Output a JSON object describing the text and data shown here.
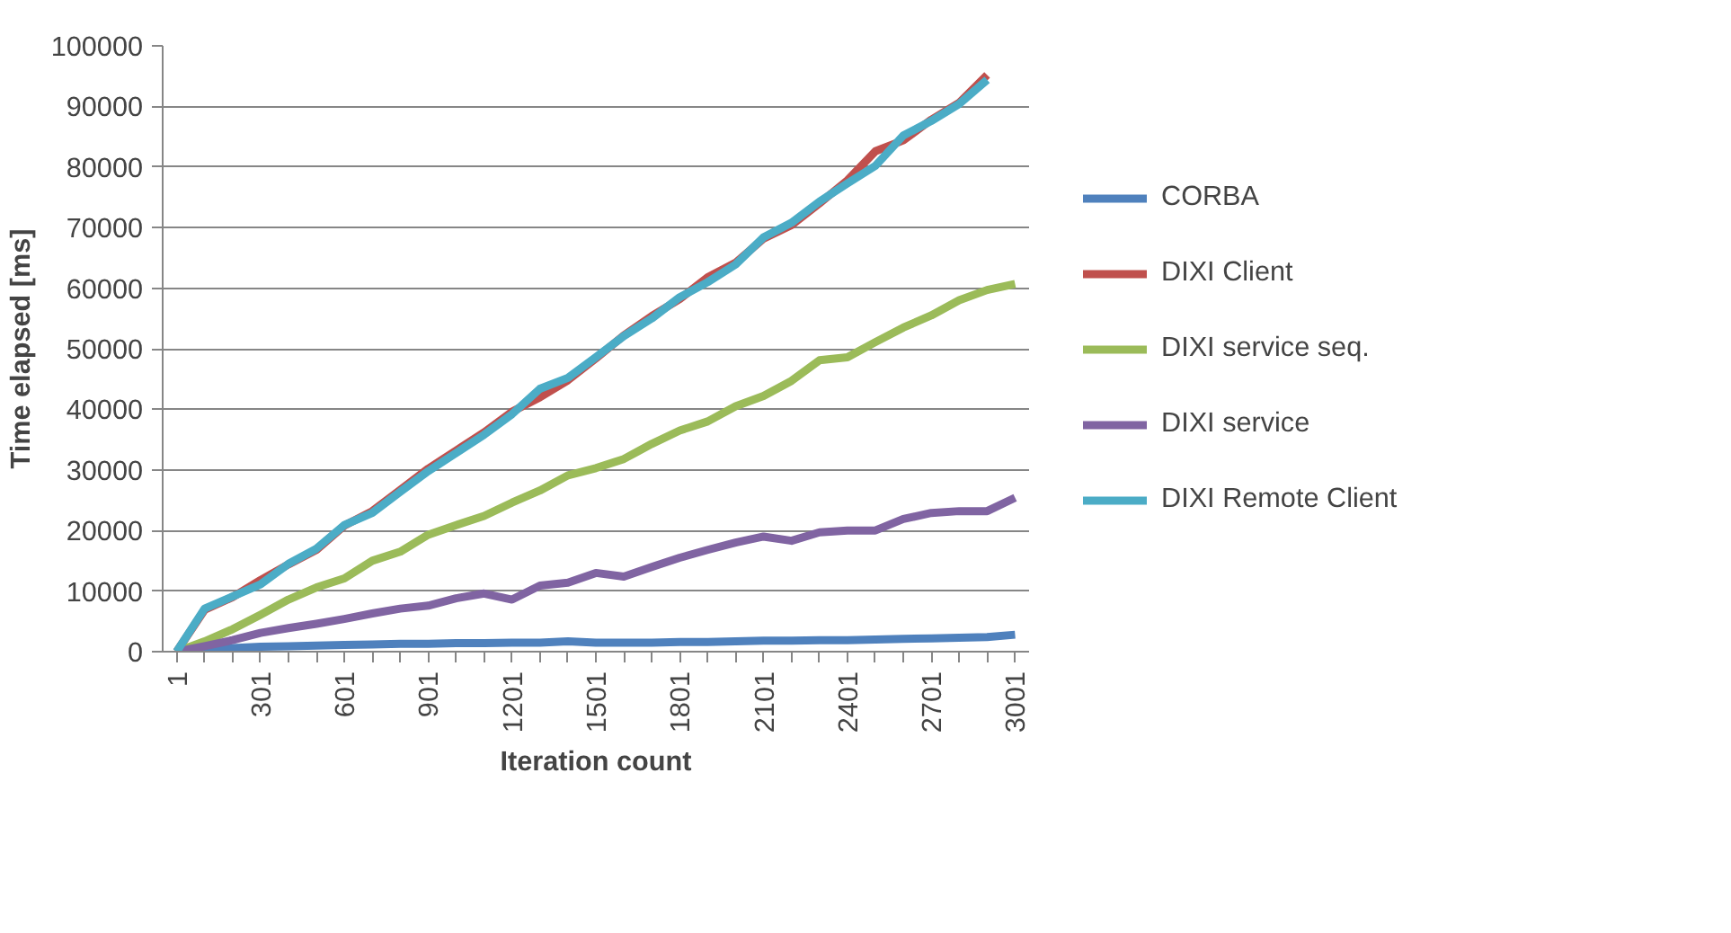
{
  "chart_data": {
    "type": "line",
    "xlabel": "Iteration count",
    "ylabel": "Time elapsed [ms]",
    "categories": [
      "1",
      null,
      null,
      "301",
      null,
      null,
      "601",
      null,
      null,
      "901",
      null,
      null,
      "1201",
      null,
      null,
      "1501",
      null,
      null,
      "1801",
      null,
      null,
      "2101",
      null,
      null,
      "2401",
      null,
      null,
      "2701",
      null,
      null,
      "3001"
    ],
    "ylim": [
      0,
      100000
    ],
    "yticks": [
      0,
      10000,
      20000,
      30000,
      40000,
      50000,
      60000,
      70000,
      80000,
      90000,
      100000
    ],
    "grid": "y",
    "legend": "right",
    "marker": "none",
    "line_style": "solid",
    "series": [
      {
        "name": "CORBA",
        "color": "#4f81bd",
        "values": [
          0,
          400,
          600,
          800,
          900,
          1000,
          1100,
          1200,
          1300,
          1300,
          1400,
          1400,
          1500,
          1500,
          1700,
          1500,
          1500,
          1500,
          1600,
          1600,
          1700,
          1800,
          1800,
          1900,
          1900,
          2000,
          2100,
          2200,
          2300,
          2400,
          2800
        ]
      },
      {
        "name": "DIXI Client",
        "color": "#c0504d",
        "values": [
          0,
          6900,
          9000,
          11800,
          14400,
          16800,
          20800,
          23200,
          26700,
          30200,
          33200,
          36200,
          39600,
          42000,
          44800,
          48400,
          52200,
          55400,
          58200,
          61800,
          64200,
          68200,
          70400,
          74000,
          77800,
          82600,
          84400,
          87800,
          90600,
          95200,
          null
        ]
      },
      {
        "name": "DIXI service seq.",
        "color": "#9bbb59",
        "values": [
          0,
          1700,
          3700,
          6100,
          8600,
          10600,
          12100,
          15000,
          16500,
          19300,
          20900,
          22400,
          24600,
          26600,
          29100,
          30300,
          31800,
          34300,
          36500,
          38000,
          40500,
          42200,
          44700,
          48100,
          48600,
          51100,
          53500,
          55500,
          58000,
          59700,
          60700
        ]
      },
      {
        "name": "DIXI service",
        "color": "#8064a2",
        "values": [
          0,
          900,
          1900,
          3100,
          3900,
          4600,
          5400,
          6300,
          7100,
          7600,
          8800,
          9600,
          8600,
          10900,
          11400,
          13000,
          12400,
          14000,
          15500,
          16800,
          18000,
          19000,
          18300,
          19700,
          20000,
          20000,
          21900,
          22900,
          23200,
          23200,
          25400
        ]
      },
      {
        "name": "DIXI Remote Client",
        "color": "#4bacc6",
        "values": [
          0,
          7100,
          9100,
          11100,
          14500,
          17000,
          20900,
          22900,
          26400,
          29800,
          32800,
          35800,
          39200,
          43400,
          45200,
          48600,
          52100,
          55000,
          58500,
          61000,
          63900,
          68400,
          70800,
          74300,
          77300,
          80200,
          85200,
          87600,
          90400,
          94400,
          null
        ]
      }
    ]
  }
}
